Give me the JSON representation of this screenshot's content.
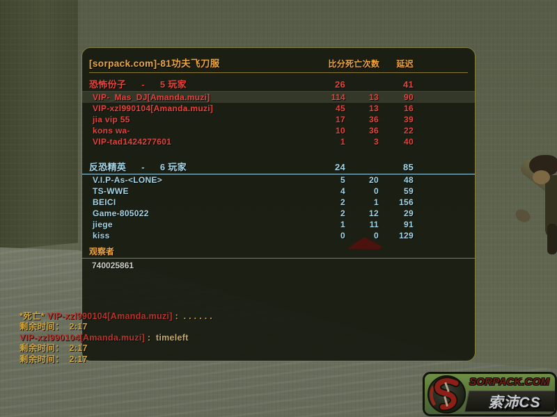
{
  "scoreboard": {
    "title": "[sorpack.com]-81功夫飞刀服",
    "columns": {
      "score": "比分",
      "deaths": "死亡次数",
      "latency": "延迟"
    },
    "team_dash": "-",
    "teams": [
      {
        "name": "恐怖份子",
        "count": "5 玩家",
        "score": "26",
        "latency": "41",
        "color": "#e5423a",
        "separator_color": "#9c2020",
        "players": [
          {
            "name": "VIP-_Mas_DJ[Amanda.muzi]",
            "score": "114",
            "deaths": "13",
            "latency": "90",
            "highlighted": true
          },
          {
            "name": "VIP-xzl990104[Amanda.muzi]",
            "score": "45",
            "deaths": "13",
            "latency": "16",
            "highlighted": false
          },
          {
            "name": "jia  vip 55",
            "score": "17",
            "deaths": "36",
            "latency": "39",
            "highlighted": false
          },
          {
            "name": "kons wa-",
            "score": "10",
            "deaths": "36",
            "latency": "22",
            "highlighted": false
          },
          {
            "name": "VIP-tad1424277601",
            "score": "1",
            "deaths": "3",
            "latency": "40",
            "highlighted": false
          }
        ]
      },
      {
        "name": "反恐精英",
        "count": "6 玩家",
        "score": "24",
        "latency": "85",
        "color": "#a2d6e8",
        "separator_color": "#a2d6e8",
        "players": [
          {
            "name": "V.I.P-As-<LONE>",
            "score": "5",
            "deaths": "20",
            "latency": "48",
            "highlighted": false
          },
          {
            "name": "TS-WWE",
            "score": "4",
            "deaths": "0",
            "latency": "59",
            "highlighted": false
          },
          {
            "name": "BEICI",
            "score": "2",
            "deaths": "1",
            "latency": "156",
            "highlighted": false
          },
          {
            "name": "Game-805022",
            "score": "2",
            "deaths": "12",
            "latency": "29",
            "highlighted": false
          },
          {
            "name": "jiege",
            "score": "1",
            "deaths": "11",
            "latency": "91",
            "highlighted": false
          },
          {
            "name": "kiss",
            "score": "0",
            "deaths": "0",
            "latency": "129",
            "highlighted": false
          }
        ]
      }
    ],
    "spectators": {
      "label": "观察者",
      "names": [
        "740025861"
      ]
    }
  },
  "chat": {
    "colors": {
      "gold": "#cfa53b",
      "red": "#b8332b",
      "tan": "#c7a964"
    },
    "lines": [
      {
        "segments": [
          {
            "text": "*死亡* ",
            "color": "gold"
          },
          {
            "text": "VIP-xzl990104[Amanda.muzi]",
            "color": "red"
          },
          {
            "text": " :  . . . . . .",
            "color": "gold"
          }
        ]
      },
      {
        "segments": [
          {
            "text": "剩余时间：  2:17",
            "color": "gold"
          }
        ]
      },
      {
        "segments": [
          {
            "text": "VIP-xzl990104[Amanda.muzi]",
            "color": "red"
          },
          {
            "text": " :  timeleft",
            "color": "tan"
          }
        ]
      },
      {
        "segments": [
          {
            "text": "剩余时间：  2:17",
            "color": "gold"
          }
        ]
      },
      {
        "segments": [
          {
            "text": "剩余时间：  2:17",
            "color": "gold"
          }
        ]
      }
    ]
  },
  "watermark": {
    "site": "SORPACK.COM",
    "brand": "索沛CS",
    "emblem_letter": "S"
  },
  "colors": {
    "panel_border": "#857d3e",
    "title_gold": "#eda63e",
    "separator_gold": "#8d7a2e",
    "terrorist_red": "#e5423a",
    "ct_blue": "#a2d6e8",
    "spectator_text": "#cfcfc7"
  }
}
